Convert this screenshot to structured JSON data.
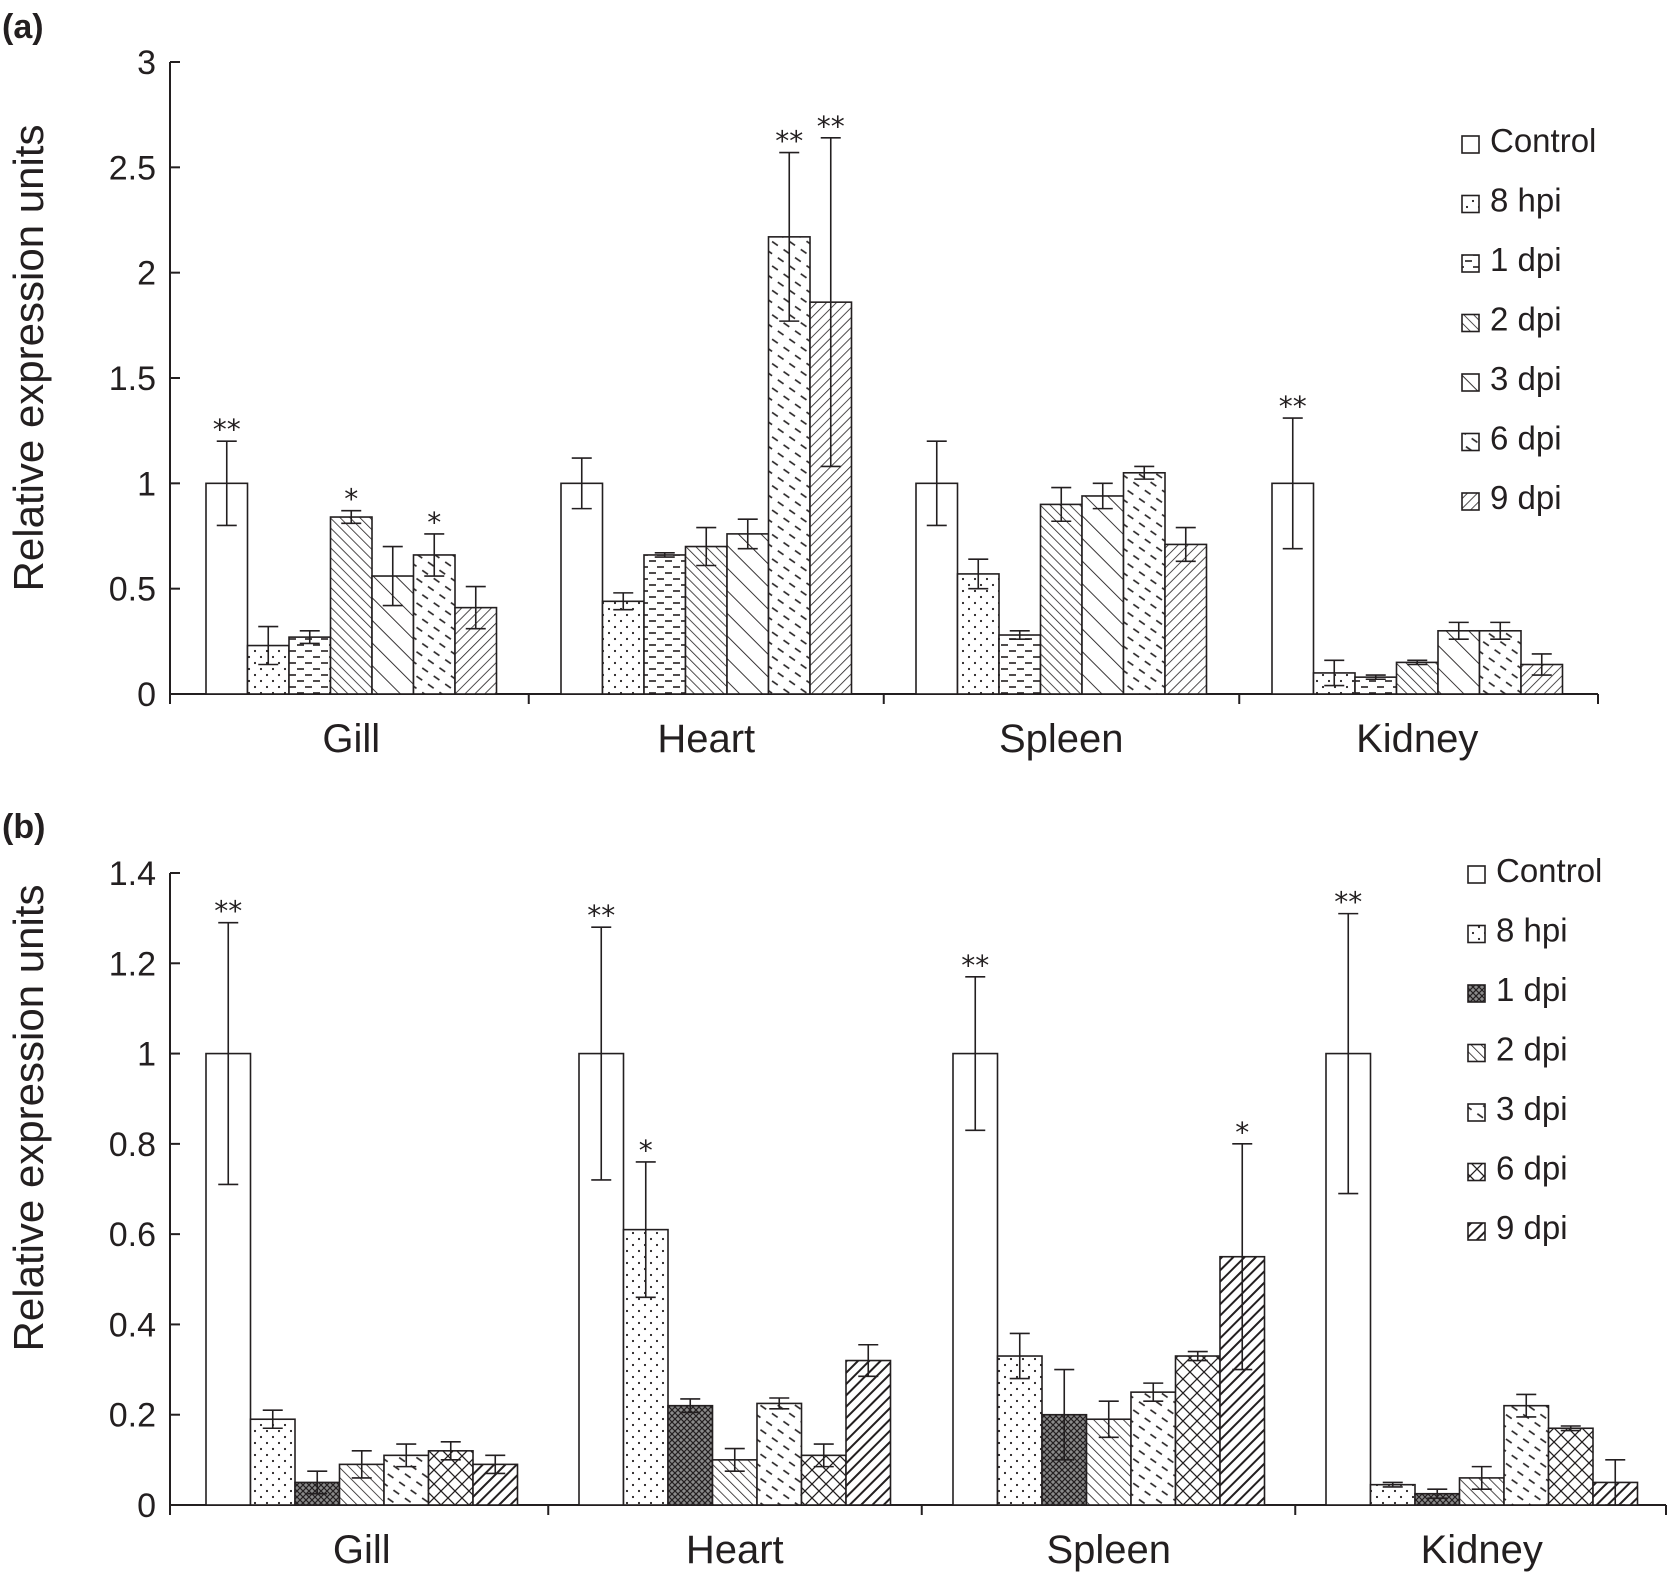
{
  "chart_data": [
    {
      "type": "bar",
      "panel_label": "(a)",
      "ylabel": "Relative expression units",
      "ylim": [
        0,
        3
      ],
      "yticks": [
        0,
        0.5,
        1,
        1.5,
        2,
        2.5,
        3
      ],
      "ytick_labels": [
        "0",
        "0.5",
        "1",
        "1.5",
        "2",
        "2.5",
        "3"
      ],
      "categories": [
        "Gill",
        "Heart",
        "Spleen",
        "Kidney"
      ],
      "legend_position": "right",
      "series": [
        {
          "name": "Control",
          "pattern": "none",
          "values": [
            1.0,
            1.0,
            1.0,
            1.0
          ],
          "errors": [
            0.2,
            0.12,
            0.2,
            0.31
          ],
          "marks": [
            "**",
            "",
            "",
            "**"
          ]
        },
        {
          "name": "8 hpi",
          "pattern": "dots",
          "values": [
            0.23,
            0.44,
            0.57,
            0.1
          ],
          "errors": [
            0.09,
            0.04,
            0.07,
            0.06
          ],
          "marks": [
            "",
            "",
            "",
            ""
          ]
        },
        {
          "name": "1 dpi",
          "pattern": "hdash",
          "values": [
            0.27,
            0.66,
            0.28,
            0.08
          ],
          "errors": [
            0.03,
            0.01,
            0.02,
            0.01
          ],
          "marks": [
            "",
            "",
            "",
            ""
          ]
        },
        {
          "name": "2 dpi",
          "pattern": "diag-fine",
          "values": [
            0.84,
            0.7,
            0.9,
            0.15
          ],
          "errors": [
            0.03,
            0.09,
            0.08,
            0.01
          ],
          "marks": [
            "*",
            "",
            "",
            ""
          ]
        },
        {
          "name": "3 dpi",
          "pattern": "diag-wide",
          "values": [
            0.56,
            0.76,
            0.94,
            0.3
          ],
          "errors": [
            0.14,
            0.07,
            0.06,
            0.04
          ],
          "marks": [
            "",
            "",
            "",
            ""
          ]
        },
        {
          "name": "6 dpi",
          "pattern": "dashdiag",
          "values": [
            0.66,
            2.17,
            1.05,
            0.3
          ],
          "errors": [
            0.1,
            0.4,
            0.03,
            0.04
          ],
          "marks": [
            "*",
            "**",
            "",
            ""
          ]
        },
        {
          "name": "9 dpi",
          "pattern": "backdiag",
          "values": [
            0.41,
            1.86,
            0.71,
            0.14
          ],
          "errors": [
            0.1,
            0.78,
            0.08,
            0.05
          ],
          "marks": [
            "",
            "**",
            "",
            ""
          ]
        }
      ]
    },
    {
      "type": "bar",
      "panel_label": "(b)",
      "ylabel": "Relative expression units",
      "ylim": [
        0,
        1.4
      ],
      "yticks": [
        0,
        0.2,
        0.4,
        0.6,
        0.8,
        1,
        1.2,
        1.4
      ],
      "ytick_labels": [
        "0",
        "0.2",
        "0.4",
        "0.6",
        "0.8",
        "1",
        "1.2",
        "1.4"
      ],
      "categories": [
        "Gill",
        "Heart",
        "Spleen",
        "Kidney"
      ],
      "legend_position": "right",
      "series": [
        {
          "name": "Control",
          "pattern": "none",
          "values": [
            1.0,
            1.0,
            1.0,
            1.0
          ],
          "errors": [
            0.29,
            0.28,
            0.17,
            0.31
          ],
          "marks": [
            "**",
            "**",
            "**",
            "**"
          ]
        },
        {
          "name": "8 hpi",
          "pattern": "dots",
          "values": [
            0.19,
            0.61,
            0.33,
            0.045
          ],
          "errors": [
            0.02,
            0.15,
            0.05,
            0.005
          ],
          "marks": [
            "",
            "*",
            "",
            ""
          ]
        },
        {
          "name": "1 dpi",
          "pattern": "crosshatch",
          "values": [
            0.05,
            0.22,
            0.2,
            0.025
          ],
          "errors": [
            0.025,
            0.015,
            0.1,
            0.01
          ],
          "marks": [
            "",
            "",
            "",
            ""
          ]
        },
        {
          "name": "2 dpi",
          "pattern": "diag-fine",
          "values": [
            0.09,
            0.1,
            0.19,
            0.06
          ],
          "errors": [
            0.03,
            0.025,
            0.04,
            0.025
          ],
          "marks": [
            "",
            "",
            "",
            ""
          ]
        },
        {
          "name": "3 dpi",
          "pattern": "dashdiag",
          "values": [
            0.11,
            0.225,
            0.25,
            0.22
          ],
          "errors": [
            0.025,
            0.012,
            0.02,
            0.025
          ],
          "marks": [
            "",
            "",
            "",
            ""
          ]
        },
        {
          "name": "6 dpi",
          "pattern": "xhatch",
          "values": [
            0.12,
            0.11,
            0.33,
            0.17
          ],
          "errors": [
            0.02,
            0.025,
            0.01,
            0.005
          ],
          "marks": [
            "",
            "",
            "",
            ""
          ]
        },
        {
          "name": "9 dpi",
          "pattern": "heavydiag",
          "values": [
            0.09,
            0.32,
            0.55,
            0.05
          ],
          "errors": [
            0.02,
            0.035,
            0.25,
            0.05
          ],
          "marks": [
            "",
            "",
            "*",
            ""
          ]
        }
      ]
    }
  ]
}
